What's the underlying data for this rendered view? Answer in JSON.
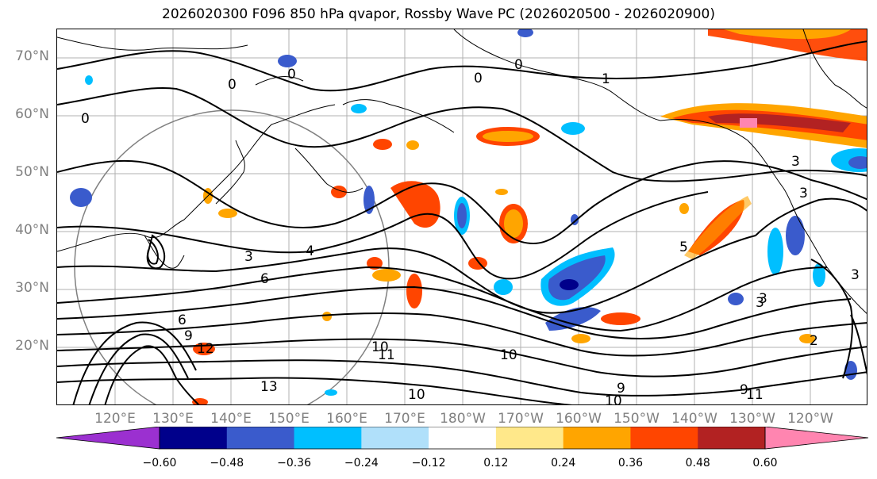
{
  "title": "2026020300 F096 850 hPa qvapor, Rossby Wave PC (2026020500 - 2026020900)",
  "lat_labels": [
    "70°N",
    "60°N",
    "50°N",
    "40°N",
    "30°N",
    "20°N"
  ],
  "lon_labels": [
    "120°E",
    "130°E",
    "140°E",
    "150°E",
    "160°E",
    "170°E",
    "180°W",
    "170°W",
    "160°W",
    "150°W",
    "140°W",
    "130°W",
    "120°W"
  ],
  "contour_labels": [
    "0",
    "0",
    "0",
    "0",
    "0",
    "1",
    "3",
    "3",
    "4",
    "6",
    "6",
    "9",
    "12",
    "13",
    "10",
    "11",
    "10",
    "10",
    "9",
    "10",
    "11",
    "9",
    "3",
    "3",
    "3",
    "3",
    "5",
    "2"
  ],
  "colorbar": {
    "colors": [
      "#9b30d0",
      "#00008b",
      "#3a5bcc",
      "#00bfff",
      "#b0e0fa",
      "#ffffff",
      "#ffe88a",
      "#ffa500",
      "#ff4500",
      "#b22222",
      "#ff85b0"
    ],
    "ticks": [
      "−0.60",
      "−0.48",
      "−0.36",
      "−0.24",
      "−0.12",
      "0.12",
      "0.24",
      "0.36",
      "0.48",
      "0.60"
    ]
  }
}
